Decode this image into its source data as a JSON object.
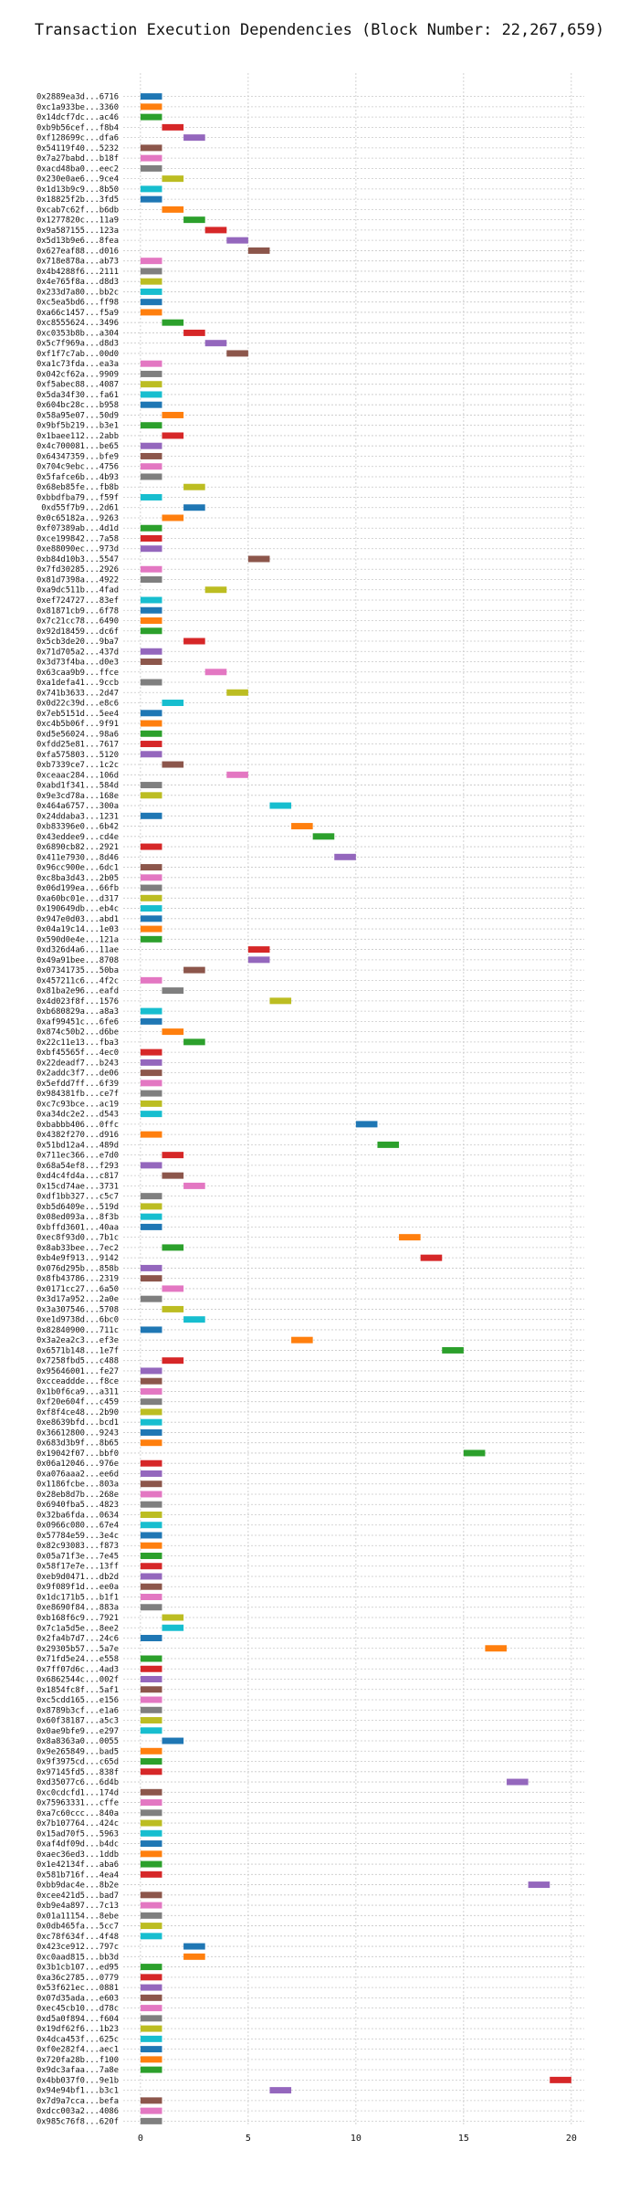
{
  "chart_data": {
    "type": "bar",
    "orientation": "horizontal-gantt",
    "title": "Transaction Execution Dependencies (Block Number: 22,267,659)",
    "xlabel": "",
    "ylabel": "",
    "x_ticks": [
      0,
      5,
      10,
      15,
      20
    ],
    "xlim": [
      -0.8,
      20.6
    ],
    "grid": true,
    "legend": "none",
    "palette": [
      "#1f77b4",
      "#ff7f0e",
      "#2ca02c",
      "#d62728",
      "#9467bd",
      "#8c564b",
      "#e377c2",
      "#7f7f7f",
      "#bcbd22",
      "#17becf"
    ],
    "bar_duration": 1,
    "transactions": [
      {
        "hash": "0x2889ea3d...6716",
        "start": 0
      },
      {
        "hash": "0xc1a933be...3360",
        "start": 0
      },
      {
        "hash": "0x14dcf7dc...ac46",
        "start": 0
      },
      {
        "hash": "0xb9b56cef...f8b4",
        "start": 1
      },
      {
        "hash": "0xf128699c...dfa6",
        "start": 2
      },
      {
        "hash": "0x54119f40...5232",
        "start": 0
      },
      {
        "hash": "0x7a27babd...b18f",
        "start": 0
      },
      {
        "hash": "0xacd48ba0...eec2",
        "start": 0
      },
      {
        "hash": "0x230e0ae6...9ce4",
        "start": 1
      },
      {
        "hash": "0x1d13b9c9...8b50",
        "start": 0
      },
      {
        "hash": "0x18825f2b...3fd5",
        "start": 0
      },
      {
        "hash": "0xcab7c62f...b6db",
        "start": 1
      },
      {
        "hash": "0x1277820c...11a9",
        "start": 2
      },
      {
        "hash": "0x9a587155...123a",
        "start": 3
      },
      {
        "hash": "0x5d13b9e6...8fea",
        "start": 4
      },
      {
        "hash": "0x627eaf88...d016",
        "start": 5
      },
      {
        "hash": "0x718e878a...ab73",
        "start": 0
      },
      {
        "hash": "0x4b4288f6...2111",
        "start": 0
      },
      {
        "hash": "0x4e765f8a...d8d3",
        "start": 0
      },
      {
        "hash": "0x233d7a80...bb2c",
        "start": 0
      },
      {
        "hash": "0xc5ea5bd6...ff98",
        "start": 0
      },
      {
        "hash": "0xa66c1457...f5a9",
        "start": 0
      },
      {
        "hash": "0xc8555624...3496",
        "start": 1
      },
      {
        "hash": "0xc0353b8b...a304",
        "start": 2
      },
      {
        "hash": "0x5c7f969a...d8d3",
        "start": 3
      },
      {
        "hash": "0xf1f7c7ab...00d0",
        "start": 4
      },
      {
        "hash": "0xa1c73fda...ea3a",
        "start": 0
      },
      {
        "hash": "0x042cf62a...9909",
        "start": 0
      },
      {
        "hash": "0xf5abec88...4087",
        "start": 0
      },
      {
        "hash": "0x5da34f30...fa61",
        "start": 0
      },
      {
        "hash": "0x604bc28c...b958",
        "start": 0
      },
      {
        "hash": "0x58a95e07...50d9",
        "start": 1
      },
      {
        "hash": "0x9bf5b219...b3e1",
        "start": 0
      },
      {
        "hash": "0x1baee112...2abb",
        "start": 1
      },
      {
        "hash": "0x4c700081...be65",
        "start": 0
      },
      {
        "hash": "0x64347359...bfe9",
        "start": 0
      },
      {
        "hash": "0x704c9ebc...4756",
        "start": 0
      },
      {
        "hash": "0x5fafce6b...4b93",
        "start": 0
      },
      {
        "hash": "0x68eb85fe...fb8b",
        "start": 2
      },
      {
        "hash": "0xbbdfba79...f59f",
        "start": 0
      },
      {
        "hash": "0xd55f7b9...2d61",
        "start": 2
      },
      {
        "hash": "0x0c65182a...9263",
        "start": 1
      },
      {
        "hash": "0xf07389ab...4d1d",
        "start": 0
      },
      {
        "hash": "0xce199842...7a58",
        "start": 0
      },
      {
        "hash": "0xe88090ec...973d",
        "start": 0
      },
      {
        "hash": "0xb84d10b3...5547",
        "start": 5
      },
      {
        "hash": "0x7fd30285...2926",
        "start": 0
      },
      {
        "hash": "0x81d7398a...4922",
        "start": 0
      },
      {
        "hash": "0xa9dc511b...4fad",
        "start": 3
      },
      {
        "hash": "0xef724727...83ef",
        "start": 0
      },
      {
        "hash": "0x81871cb9...6f78",
        "start": 0
      },
      {
        "hash": "0x7c21cc78...6490",
        "start": 0
      },
      {
        "hash": "0x92d18459...dc6f",
        "start": 0
      },
      {
        "hash": "0x5cb3de20...9ba7",
        "start": 2
      },
      {
        "hash": "0x71d705a2...437d",
        "start": 0
      },
      {
        "hash": "0x3d73f4ba...d0e3",
        "start": 0
      },
      {
        "hash": "0x63caa9b9...ffce",
        "start": 3
      },
      {
        "hash": "0xa1defa41...9ccb",
        "start": 0
      },
      {
        "hash": "0x741b3633...2d47",
        "start": 4
      },
      {
        "hash": "0x0d22c39d...e8c6",
        "start": 1
      },
      {
        "hash": "0x7eb5151d...5ee4",
        "start": 0
      },
      {
        "hash": "0xc4b5b06f...9f91",
        "start": 0
      },
      {
        "hash": "0xd5e56024...98a6",
        "start": 0
      },
      {
        "hash": "0xfdd25e81...7617",
        "start": 0
      },
      {
        "hash": "0xfa575803...5120",
        "start": 0
      },
      {
        "hash": "0xb7339ce7...1c2c",
        "start": 1
      },
      {
        "hash": "0xceaac284...106d",
        "start": 4
      },
      {
        "hash": "0xabd1f341...584d",
        "start": 0
      },
      {
        "hash": "0x9e3cd78a...168e",
        "start": 0
      },
      {
        "hash": "0x464a6757...300a",
        "start": 6
      },
      {
        "hash": "0x24ddaba3...1231",
        "start": 0
      },
      {
        "hash": "0xb83396e0...6b42",
        "start": 7
      },
      {
        "hash": "0x43eddee9...cd4e",
        "start": 8
      },
      {
        "hash": "0x6890cb82...2921",
        "start": 0
      },
      {
        "hash": "0x411e7930...8d46",
        "start": 9
      },
      {
        "hash": "0x96cc900e...6dc1",
        "start": 0
      },
      {
        "hash": "0xc8ba3d43...2b05",
        "start": 0
      },
      {
        "hash": "0x06d199ea...66fb",
        "start": 0
      },
      {
        "hash": "0xa60bc01e...d317",
        "start": 0
      },
      {
        "hash": "0x190649db...eb4c",
        "start": 0
      },
      {
        "hash": "0x947e0d03...abd1",
        "start": 0
      },
      {
        "hash": "0x04a19c14...1e03",
        "start": 0
      },
      {
        "hash": "0x590d0e4e...121a",
        "start": 0
      },
      {
        "hash": "0xd326d4a6...11ae",
        "start": 5
      },
      {
        "hash": "0x49a91bee...8708",
        "start": 5
      },
      {
        "hash": "0x07341735...50ba",
        "start": 2
      },
      {
        "hash": "0x457211c6...4f2c",
        "start": 0
      },
      {
        "hash": "0x81ba2e96...eafd",
        "start": 1
      },
      {
        "hash": "0x4d023f8f...1576",
        "start": 6
      },
      {
        "hash": "0xb680829a...a8a3",
        "start": 0
      },
      {
        "hash": "0xaf99451c...6fe6",
        "start": 0
      },
      {
        "hash": "0x874c50b2...d6be",
        "start": 1
      },
      {
        "hash": "0x22c11e13...fba3",
        "start": 2
      },
      {
        "hash": "0xbf45565f...4ec0",
        "start": 0
      },
      {
        "hash": "0x22deadf7...b243",
        "start": 0
      },
      {
        "hash": "0x2addc3f7...de06",
        "start": 0
      },
      {
        "hash": "0x5efdd7ff...6f39",
        "start": 0
      },
      {
        "hash": "0x984381fb...ce7f",
        "start": 0
      },
      {
        "hash": "0xc7c93bce...ac19",
        "start": 0
      },
      {
        "hash": "0xa34dc2e2...d543",
        "start": 0
      },
      {
        "hash": "0xbabbb406...0ffc",
        "start": 10
      },
      {
        "hash": "0x4382f270...d916",
        "start": 0
      },
      {
        "hash": "0x51bd12a4...489d",
        "start": 11
      },
      {
        "hash": "0x711ec366...e7d0",
        "start": 1
      },
      {
        "hash": "0x68a54ef8...f293",
        "start": 0
      },
      {
        "hash": "0xd4c4fd4a...c817",
        "start": 1
      },
      {
        "hash": "0x15cd74ae...3731",
        "start": 2
      },
      {
        "hash": "0xdf1bb327...c5c7",
        "start": 0
      },
      {
        "hash": "0xb5d6409e...519d",
        "start": 0
      },
      {
        "hash": "0x08ed093a...8f3b",
        "start": 0
      },
      {
        "hash": "0xbffd3601...40aa",
        "start": 0
      },
      {
        "hash": "0xec8f93d0...7b1c",
        "start": 12
      },
      {
        "hash": "0x8ab33bee...7ec2",
        "start": 1
      },
      {
        "hash": "0xb4e9f913...9142",
        "start": 13
      },
      {
        "hash": "0x076d295b...858b",
        "start": 0
      },
      {
        "hash": "0x8fb43786...2319",
        "start": 0
      },
      {
        "hash": "0x0171cc27...6a50",
        "start": 1
      },
      {
        "hash": "0x3d17a952...2a0e",
        "start": 0
      },
      {
        "hash": "0x3a307546...5708",
        "start": 1
      },
      {
        "hash": "0xe1d9738d...6bc0",
        "start": 2
      },
      {
        "hash": "0x82840900...711c",
        "start": 0
      },
      {
        "hash": "0x3a2ea2c3...ef3e",
        "start": 7
      },
      {
        "hash": "0x6571b148...1e7f",
        "start": 14
      },
      {
        "hash": "0x7258fbd5...c488",
        "start": 1
      },
      {
        "hash": "0x95646001...fe27",
        "start": 0
      },
      {
        "hash": "0xcceaddde...f8ce",
        "start": 0
      },
      {
        "hash": "0x1b0f6ca9...a311",
        "start": 0
      },
      {
        "hash": "0xf20e604f...c459",
        "start": 0
      },
      {
        "hash": "0xf8f4ce48...2b90",
        "start": 0
      },
      {
        "hash": "0xe8639bfd...bcd1",
        "start": 0
      },
      {
        "hash": "0x36612800...9243",
        "start": 0
      },
      {
        "hash": "0x683d3b9f...8b65",
        "start": 0
      },
      {
        "hash": "0x19042f07...bbf0",
        "start": 15
      },
      {
        "hash": "0x06a12046...976e",
        "start": 0
      },
      {
        "hash": "0xa076aaa2...ee6d",
        "start": 0
      },
      {
        "hash": "0x1186fcbe...803a",
        "start": 0
      },
      {
        "hash": "0x28eb8d7b...268e",
        "start": 0
      },
      {
        "hash": "0x6940fba5...4823",
        "start": 0
      },
      {
        "hash": "0x32ba6fda...0634",
        "start": 0
      },
      {
        "hash": "0x0966c080...67e4",
        "start": 0
      },
      {
        "hash": "0x57784e59...3e4c",
        "start": 0
      },
      {
        "hash": "0x82c93083...f873",
        "start": 0
      },
      {
        "hash": "0x05a71f3e...7e45",
        "start": 0
      },
      {
        "hash": "0x58f17e7e...13ff",
        "start": 0
      },
      {
        "hash": "0xeb9d0471...db2d",
        "start": 0
      },
      {
        "hash": "0x9f089f1d...ee0a",
        "start": 0
      },
      {
        "hash": "0x1dc171b5...b1f1",
        "start": 0
      },
      {
        "hash": "0xe8690f84...883a",
        "start": 0
      },
      {
        "hash": "0xb168f6c9...7921",
        "start": 1
      },
      {
        "hash": "0x7c1a5d5e...8ee2",
        "start": 1
      },
      {
        "hash": "0x2fa4b7d7...24c6",
        "start": 0
      },
      {
        "hash": "0x29305b57...5a7e",
        "start": 16
      },
      {
        "hash": "0x71fd5e24...e558",
        "start": 0
      },
      {
        "hash": "0x7ff07d6c...4ad3",
        "start": 0
      },
      {
        "hash": "0x6862544c...002f",
        "start": 0
      },
      {
        "hash": "0x1854fc8f...5af1",
        "start": 0
      },
      {
        "hash": "0xc5cdd165...e156",
        "start": 0
      },
      {
        "hash": "0x8789b3cf...e1a6",
        "start": 0
      },
      {
        "hash": "0x60f38187...a5c3",
        "start": 0
      },
      {
        "hash": "0x0ae9bfe9...e297",
        "start": 0
      },
      {
        "hash": "0x8a8363a0...0055",
        "start": 1
      },
      {
        "hash": "0x9e265849...bad5",
        "start": 0
      },
      {
        "hash": "0x9f3975cd...c65d",
        "start": 0
      },
      {
        "hash": "0x97145fd5...838f",
        "start": 0
      },
      {
        "hash": "0xd35077c6...6d4b",
        "start": 17
      },
      {
        "hash": "0xc0cdcfd1...174d",
        "start": 0
      },
      {
        "hash": "0x75963331...cffe",
        "start": 0
      },
      {
        "hash": "0xa7c60ccc...840a",
        "start": 0
      },
      {
        "hash": "0x7b107764...424c",
        "start": 0
      },
      {
        "hash": "0x15ad70f5...5963",
        "start": 0
      },
      {
        "hash": "0xaf4df09d...b4dc",
        "start": 0
      },
      {
        "hash": "0xaec36ed3...1ddb",
        "start": 0
      },
      {
        "hash": "0x1e42134f...aba6",
        "start": 0
      },
      {
        "hash": "0x581b716f...4ea4",
        "start": 0
      },
      {
        "hash": "0xbb9dac4e...8b2e",
        "start": 18
      },
      {
        "hash": "0xcee421d5...bad7",
        "start": 0
      },
      {
        "hash": "0xb9e4a897...7c13",
        "start": 0
      },
      {
        "hash": "0x01a11154...8ebe",
        "start": 0
      },
      {
        "hash": "0x0db465fa...5cc7",
        "start": 0
      },
      {
        "hash": "0xc78f634f...4f48",
        "start": 0
      },
      {
        "hash": "0x423ce912...797c",
        "start": 2
      },
      {
        "hash": "0xc0aad815...bb3d",
        "start": 2
      },
      {
        "hash": "0x3b1cb107...ed95",
        "start": 0
      },
      {
        "hash": "0xa36c2785...0779",
        "start": 0
      },
      {
        "hash": "0x53f621ec...0881",
        "start": 0
      },
      {
        "hash": "0x07d35ada...e603",
        "start": 0
      },
      {
        "hash": "0xec45cb10...d78c",
        "start": 0
      },
      {
        "hash": "0xd5a0f894...f604",
        "start": 0
      },
      {
        "hash": "0x19df62f6...1b23",
        "start": 0
      },
      {
        "hash": "0x4dca453f...625c",
        "start": 0
      },
      {
        "hash": "0xf0e282f4...aec1",
        "start": 0
      },
      {
        "hash": "0x720fa28b...f100",
        "start": 0
      },
      {
        "hash": "0x9dc3afaa...7a8e",
        "start": 0
      },
      {
        "hash": "0x4bb037f0...9e1b",
        "start": 19
      },
      {
        "hash": "0x94e94bf1...b3c1",
        "start": 6
      },
      {
        "hash": "0x7d9a7cca...befa",
        "start": 0
      },
      {
        "hash": "0xdcc003a2...4086",
        "start": 0
      },
      {
        "hash": "0x985c76f8...620f",
        "start": 0
      }
    ]
  }
}
